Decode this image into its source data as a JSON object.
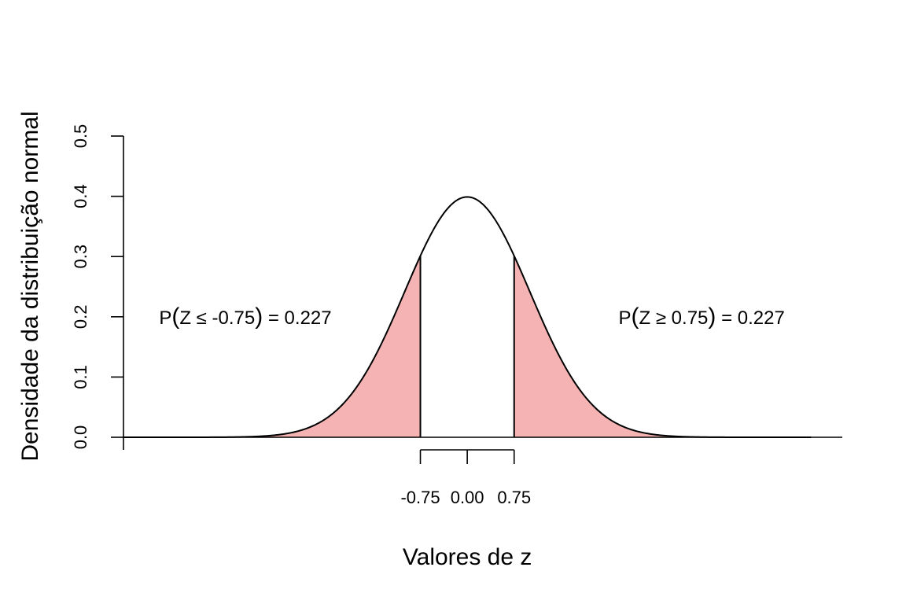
{
  "chart_data": {
    "type": "area",
    "distribution": "standard normal",
    "mean": 0,
    "sd": 1,
    "xlabel": "Valores de z",
    "ylabel": "Densidade da distribuição normal",
    "xlim": [
      -5.5,
      6
    ],
    "ylim": [
      0,
      0.5
    ],
    "curve_x_range": [
      -5.5,
      5.5
    ],
    "y_ticks": [
      "0.0",
      "0.1",
      "0.2",
      "0.3",
      "0.4",
      "0.5"
    ],
    "y_tick_values": [
      0,
      0.1,
      0.2,
      0.3,
      0.4,
      0.5
    ],
    "x_ticks": [
      "-0.75",
      "0.00",
      "0.75"
    ],
    "x_tick_values": [
      -0.75,
      0,
      0.75
    ],
    "shaded_regions": [
      {
        "name": "left tail",
        "from": -5.5,
        "to": -0.75,
        "color": "#f5b3b3"
      },
      {
        "name": "right tail",
        "from": 0.75,
        "to": 5.5,
        "color": "#f5b3b3"
      }
    ],
    "annotations": [
      {
        "text": "P(Z ≤ -0.75) = 0.227",
        "prob": "P",
        "inner": "Z ≤ -0.75",
        "value": "= 0.227",
        "x": -3.55,
        "y": 0.2
      },
      {
        "text": "P(Z ≥ 0.75) = 0.227",
        "prob": "P",
        "inner": "Z ≥ 0.75",
        "value": "= 0.227",
        "x": 3.75,
        "y": 0.2
      }
    ],
    "grid": false,
    "legend": "none"
  }
}
